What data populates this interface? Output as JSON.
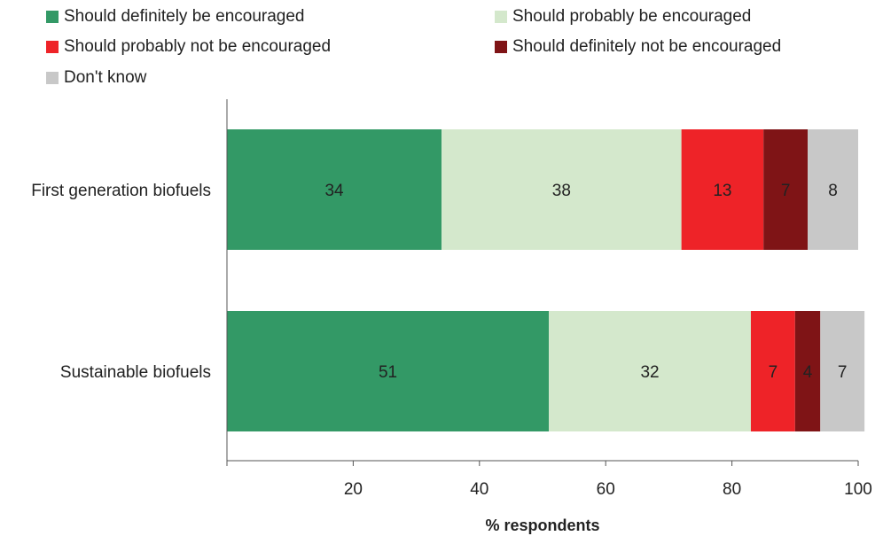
{
  "chart_data": {
    "type": "bar",
    "orientation": "horizontal",
    "stacked": true,
    "categories": [
      "First generation biofuels",
      "Sustainable biofuels"
    ],
    "series": [
      {
        "name": "Should definitely be encouraged",
        "color": "#339966",
        "values": [
          34,
          51
        ]
      },
      {
        "name": "Should probably be encouraged",
        "color": "#d4e8cc",
        "values": [
          38,
          32
        ]
      },
      {
        "name": "Should probably not be encouraged",
        "color": "#ee2328",
        "values": [
          13,
          7
        ]
      },
      {
        "name": "Should definitely not be encouraged",
        "color": "#7f1416",
        "values": [
          7,
          4
        ]
      },
      {
        "name": "Don't know",
        "color": "#c8c8c8",
        "values": [
          8,
          7
        ]
      }
    ],
    "xlabel": "% respondents",
    "ylabel": "",
    "xlim": [
      0,
      100
    ],
    "xticks": [
      20,
      40,
      60,
      80,
      100
    ],
    "grid": false,
    "legend_position": "top"
  }
}
